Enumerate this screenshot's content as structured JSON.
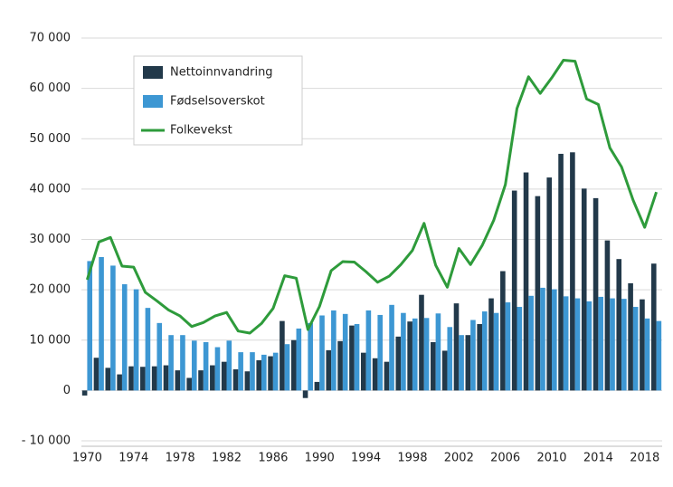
{
  "chart_data": {
    "type": "bar",
    "categories": [
      "1970",
      null,
      null,
      null,
      "1974",
      null,
      null,
      null,
      "1978",
      null,
      null,
      null,
      "1982",
      null,
      null,
      null,
      "1986",
      null,
      null,
      null,
      "1990",
      null,
      null,
      null,
      "1994",
      null,
      null,
      null,
      "1998",
      null,
      null,
      null,
      "2002",
      null,
      null,
      null,
      "2006",
      null,
      null,
      null,
      "2010",
      null,
      null,
      null,
      "2014",
      null,
      null,
      null,
      "2018",
      null
    ],
    "series": [
      {
        "name": "Nettoinnvandring",
        "type": "bar",
        "color": "#22394a",
        "values": [
          -1000,
          6500,
          4500,
          3200,
          4800,
          4700,
          4800,
          5000,
          4000,
          2500,
          4000,
          5000,
          5700,
          4200,
          3800,
          6000,
          6800,
          13800,
          10000,
          -1500,
          1700,
          8000,
          9800,
          12900,
          7500,
          6400,
          5700,
          10700,
          13700,
          19000,
          9600,
          7900,
          17300,
          11000,
          13200,
          18300,
          23700,
          39700,
          43300,
          38600,
          42300,
          47000,
          47300,
          40100,
          38200,
          29800,
          26100,
          21300,
          18100,
          25200
        ]
      },
      {
        "name": "Fødselsoverskot",
        "type": "bar",
        "color": "#3d97d3",
        "values": [
          25700,
          26500,
          24800,
          21100,
          20100,
          16400,
          13400,
          11000,
          11000,
          9900,
          9600,
          8600,
          9900,
          7600,
          7600,
          7100,
          7500,
          9200,
          12300,
          13400,
          14900,
          15900,
          15200,
          13200,
          15900,
          15000,
          17000,
          15400,
          14300,
          14400,
          15300,
          12600,
          11000,
          14000,
          15700,
          15400,
          17500,
          16600,
          18800,
          20400,
          20100,
          18700,
          18300,
          17700,
          18600,
          18300,
          18200,
          16600,
          14300,
          13800
        ]
      },
      {
        "name": "Folkevekst",
        "type": "line",
        "color": "#2e9b3b",
        "values": [
          22000,
          29500,
          30400,
          24700,
          24500,
          19500,
          17800,
          16000,
          14800,
          12700,
          13500,
          14800,
          15500,
          11800,
          11400,
          13300,
          16300,
          22800,
          22300,
          12100,
          16700,
          23800,
          25600,
          25500,
          23600,
          21500,
          22700,
          25000,
          27800,
          33200,
          24900,
          20500,
          28200,
          25000,
          28800,
          33800,
          40900,
          56000,
          62300,
          59000,
          62100,
          65600,
          65400,
          57900,
          56800,
          48200,
          44400,
          37800,
          32400,
          39400
        ]
      }
    ],
    "ylim": [
      -10000,
      70000
    ],
    "yticks": [
      {
        "value": -10000,
        "label": "- 10 000"
      },
      0,
      {
        "value": 10000,
        "label": "10 000"
      },
      {
        "value": 20000,
        "label": "20 000"
      },
      {
        "value": 30000,
        "label": "30 000"
      },
      {
        "value": 40000,
        "label": "40 000"
      },
      {
        "value": 50000,
        "label": "50 000"
      },
      {
        "value": 60000,
        "label": "60 000"
      },
      {
        "value": 70000,
        "label": "70 000"
      }
    ],
    "grid": true,
    "legend": "upper left"
  }
}
